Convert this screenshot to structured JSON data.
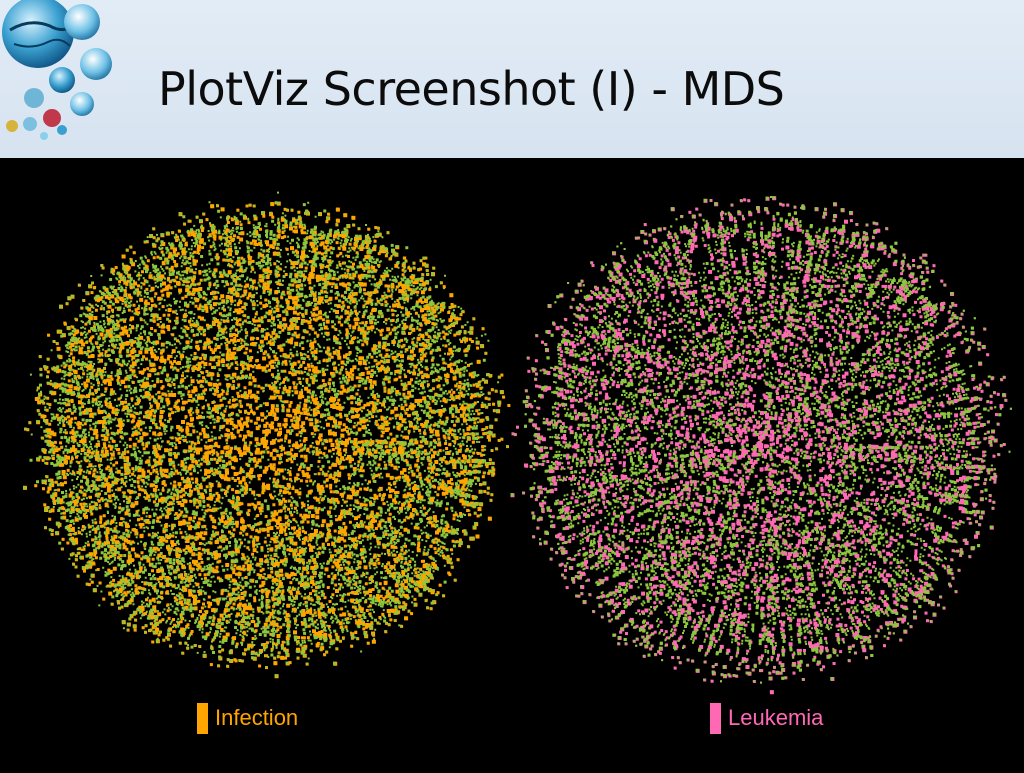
{
  "slide": {
    "title": "PlotViz Screenshot (I) - MDS",
    "logo_icon": "globe-network-cluster-icon"
  },
  "chart_data": [
    {
      "type": "scatter",
      "title": "",
      "xlabel": "",
      "ylabel": "",
      "grid": false,
      "axes_visible": false,
      "background": "#000000",
      "legend_placement": "bottom-center",
      "highlight_series": "Infection",
      "series": [
        {
          "name": "Infection",
          "color": "#ffa500",
          "density": "high"
        },
        {
          "name": "",
          "color": "#8dc63f",
          "density": "high"
        }
      ]
    },
    {
      "type": "scatter",
      "title": "",
      "xlabel": "",
      "ylabel": "",
      "grid": false,
      "axes_visible": false,
      "background": "#000000",
      "legend_placement": "bottom-center",
      "highlight_series": "Leukemia",
      "series": [
        {
          "name": "",
          "color": "#8dc63f",
          "density": "high"
        },
        {
          "name": "Leukemia",
          "color": "#ff69b4",
          "density": "medium"
        }
      ]
    }
  ]
}
